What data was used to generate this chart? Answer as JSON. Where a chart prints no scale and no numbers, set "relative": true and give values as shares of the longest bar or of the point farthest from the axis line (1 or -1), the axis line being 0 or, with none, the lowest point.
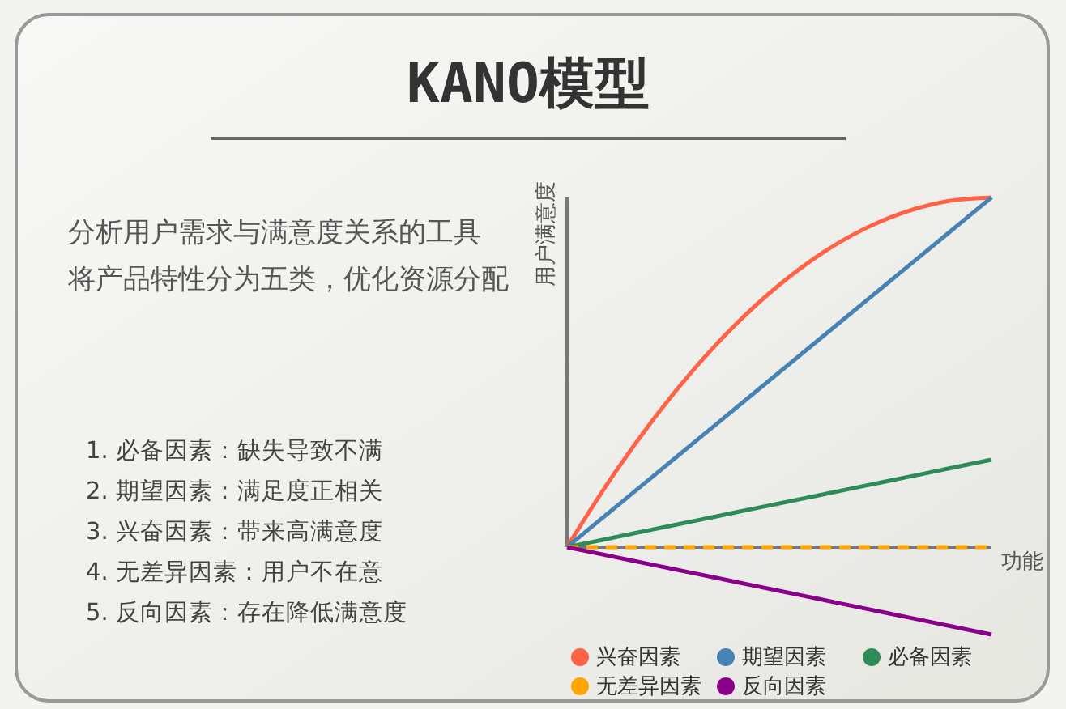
{
  "chart_data": {
    "type": "line",
    "title": "KANO模型",
    "xlabel": "功能",
    "ylabel": "用户满意度",
    "annotations": [
      "分析用户需求与满意度关系的工具",
      "将产品特性分为五类，优化资源分配",
      "1. 必备因素：缺失导致不满",
      "2. 期望因素：满足度正相关",
      "3. 兴奋因素：带来高满意度",
      "4. 无差异因素：用户不在意",
      "5. 反向因素：存在降低满意度"
    ],
    "categories": [
      null,
      null,
      null,
      null,
      null,
      null,
      null,
      null,
      null,
      null,
      null
    ],
    "relative": true,
    "legend": "bottom",
    "series": [
      {
        "name": "兴奋因素",
        "color": "#ff6347",
        "values": [
          0,
          0.19,
          0.36,
          0.51,
          0.64,
          0.75,
          0.84,
          0.91,
          0.96,
          0.99,
          1
        ]
      },
      {
        "name": "期望因素",
        "color": "#4682b4",
        "values": [
          0,
          0.1,
          0.2,
          0.3,
          0.4,
          0.5,
          0.6,
          0.7,
          0.8,
          0.9,
          1
        ]
      },
      {
        "name": "必备因素",
        "color": "#2e8b57",
        "values": [
          0,
          0.025,
          0.05,
          0.075,
          0.1,
          0.125,
          0.15,
          0.175,
          0.2,
          0.225,
          0.25
        ]
      },
      {
        "name": "无差异因素",
        "color": "#ffa500",
        "line_style": "dashed",
        "values": [
          0,
          0,
          0,
          0,
          0,
          0,
          0,
          0,
          0,
          0,
          0
        ]
      },
      {
        "name": "反向因素",
        "color": "#8b008b",
        "values": [
          0,
          -0.025,
          -0.05,
          -0.075,
          -0.1,
          -0.125,
          -0.15,
          -0.175,
          -0.2,
          -0.225,
          -0.25
        ]
      }
    ]
  }
}
